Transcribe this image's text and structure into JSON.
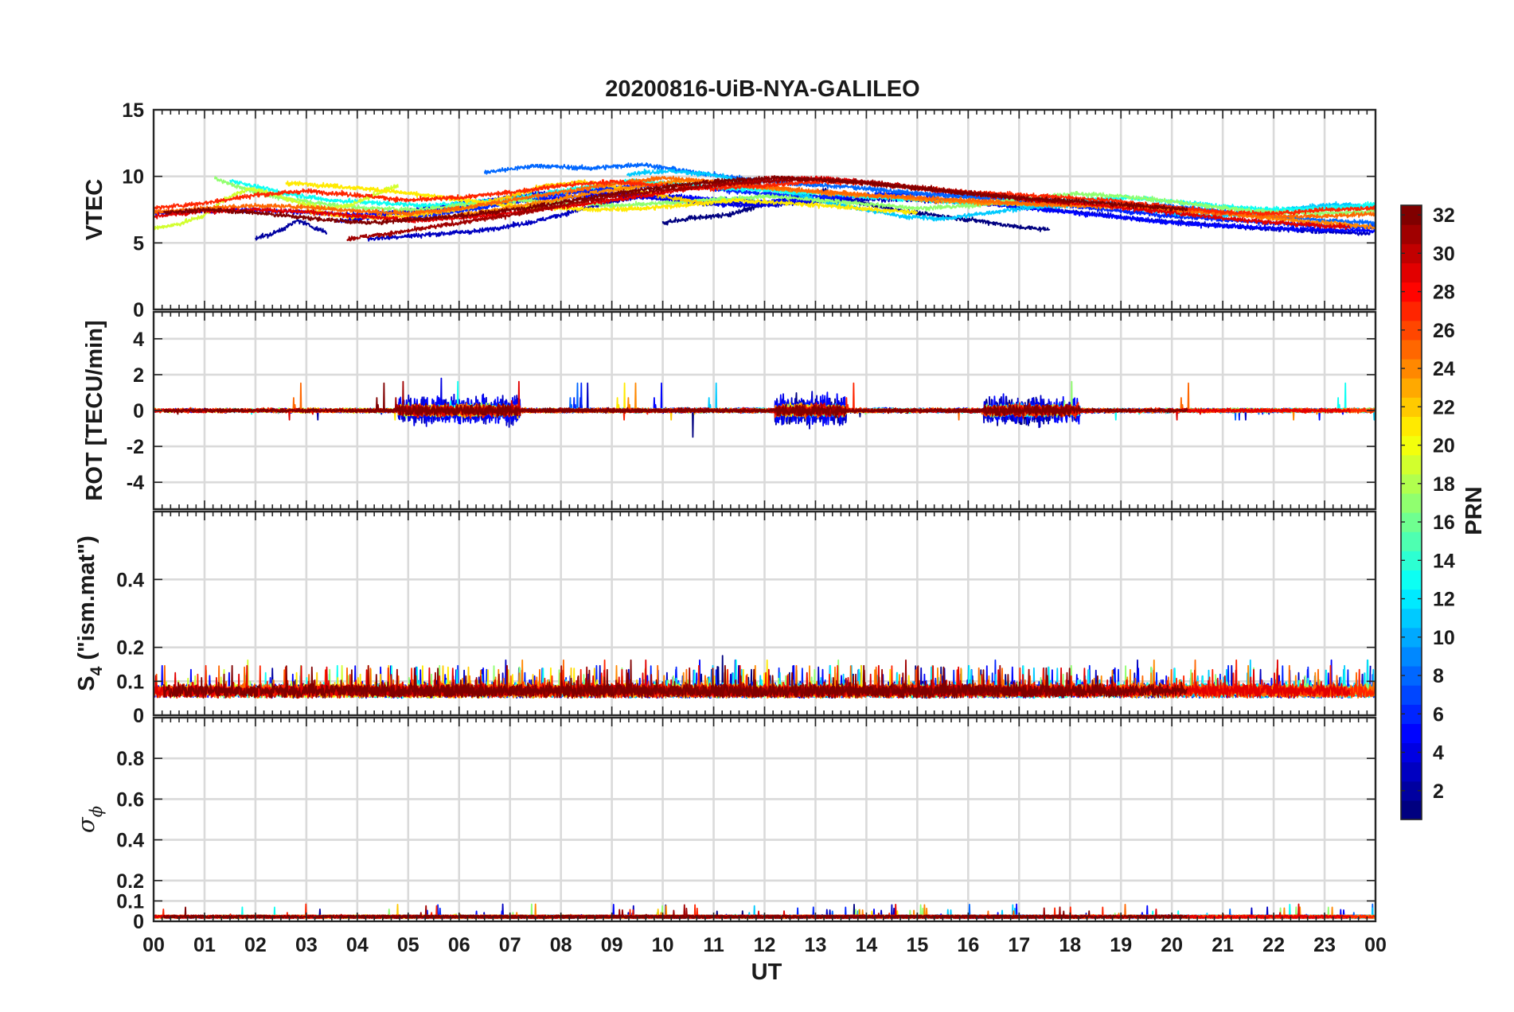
{
  "chart_data": {
    "type": "line",
    "title": "20200816-UiB-NYA-GALILEO",
    "xlabel": "UT",
    "xlim": [
      0,
      24
    ],
    "x_tick_labels": [
      "00",
      "01",
      "02",
      "03",
      "04",
      "05",
      "06",
      "07",
      "08",
      "09",
      "10",
      "11",
      "12",
      "13",
      "14",
      "15",
      "16",
      "17",
      "18",
      "19",
      "20",
      "21",
      "22",
      "23",
      "00"
    ],
    "panels": [
      {
        "ylabel": "VTEC",
        "ylim": [
          0,
          15
        ],
        "yticks": [
          0,
          5,
          10,
          15
        ],
        "ytick_labels": [
          "0",
          "5",
          "10",
          "15"
        ]
      },
      {
        "ylabel": "ROT [TECU/min]",
        "ylim": [
          -5.5,
          5.5
        ],
        "yticks": [
          -4,
          -2,
          0,
          2,
          4
        ],
        "ytick_labels": [
          "-4",
          "-2",
          "0",
          "2",
          "4"
        ]
      },
      {
        "ylabel": "S",
        "ylabel_sub": "4",
        "ylabel_suffix": " (\"ism.mat\")",
        "ylim": [
          0,
          0.6
        ],
        "yticks": [
          0,
          0.1,
          0.2,
          0.4
        ],
        "ytick_labels": [
          "0",
          "0.1",
          "0.2",
          "0.4"
        ]
      },
      {
        "ylabel": "σ",
        "ylabel_sub": "ϕ",
        "ylim": [
          0,
          1
        ],
        "yticks": [
          0,
          0.1,
          0.2,
          0.4,
          0.6,
          0.8
        ],
        "ytick_labels": [
          "0",
          "0.1",
          "0.2",
          "0.4",
          "0.6",
          "0.8"
        ]
      }
    ],
    "colorbar": {
      "label": "PRN",
      "range": [
        1,
        32
      ],
      "ticks": [
        2,
        4,
        6,
        8,
        10,
        12,
        14,
        16,
        18,
        20,
        22,
        24,
        26,
        28,
        30,
        32
      ],
      "colormap": "jet"
    },
    "grid": true,
    "series": [
      {
        "prn": 1,
        "start": 10.0,
        "end": 17.6,
        "vtec": [
          6.5,
          6.9,
          7.1,
          7.8,
          8.4,
          8.9,
          8.1,
          7.6,
          7.2,
          6.9,
          6.6,
          6.2,
          6.0
        ]
      },
      {
        "prn": 2,
        "start": 2.0,
        "end": 3.4,
        "vtec": [
          5.4,
          5.6,
          6.1,
          6.7,
          6.2,
          5.8
        ]
      },
      {
        "prn": 3,
        "start": 4.2,
        "end": 23.9,
        "vtec": [
          5.3,
          5.6,
          5.9,
          6.6,
          7.7,
          8.6,
          8.3,
          7.8,
          8.1,
          8.3,
          8.2,
          8.0,
          7.6,
          7.2,
          6.7,
          6.4,
          6.1,
          5.9,
          5.7
        ]
      },
      {
        "prn": 4,
        "start": 3.6,
        "end": 13.1,
        "vtec": [
          6.6,
          7.0,
          7.5,
          7.9,
          8.3,
          8.7,
          8.9,
          8.6,
          8.3,
          8.0,
          7.8,
          8.0,
          8.1
        ]
      },
      {
        "prn": 5,
        "start": 0.0,
        "end": 24.0,
        "vtec": [
          7.2,
          7.4,
          7.5,
          7.3,
          7.1,
          7.4,
          7.7,
          8.1,
          8.4,
          8.7,
          8.5,
          8.3,
          8.1,
          8.3,
          8.5,
          8.4,
          8.1,
          7.7,
          7.3,
          6.9,
          6.5,
          6.3,
          6.1,
          6.0,
          5.9
        ]
      },
      {
        "prn": 6,
        "start": 5.0,
        "end": 24.0,
        "vtec": [
          6.9,
          7.4,
          8.1,
          8.8,
          9.2,
          9.4,
          8.9,
          8.6,
          8.5,
          8.7,
          8.6,
          8.3,
          7.9,
          7.5,
          7.1,
          6.8,
          6.5,
          6.3,
          6.2
        ]
      },
      {
        "prn": 8,
        "start": 6.5,
        "end": 24.0,
        "vtec": [
          10.3,
          10.8,
          10.6,
          10.9,
          10.3,
          9.8,
          9.4,
          9.2,
          8.8,
          8.5,
          8.3,
          8.2,
          8.0,
          7.8,
          7.4,
          7.0,
          6.7,
          6.5
        ]
      },
      {
        "prn": 11,
        "start": 9.3,
        "end": 24.0,
        "vtec": [
          10.2,
          10.4,
          10.2,
          9.6,
          8.9,
          8.1,
          7.5,
          7.0,
          6.8,
          7.2,
          7.6,
          7.8,
          8.0,
          7.6,
          7.2,
          7.0,
          7.3,
          7.6,
          7.9,
          7.7
        ]
      },
      {
        "prn": 13,
        "start": 1.5,
        "end": 24.0,
        "vtec": [
          9.7,
          8.8,
          8.2,
          8.0,
          7.8,
          8.1,
          8.5,
          9.1,
          9.7,
          9.4,
          9.1,
          8.9,
          8.7,
          8.4,
          8.2,
          8.0,
          7.9,
          8.2,
          8.4,
          8.1,
          7.7,
          7.5,
          7.6,
          7.9
        ]
      },
      {
        "prn": 17,
        "start": 1.2,
        "end": 24.0,
        "vtec": [
          9.8,
          8.6,
          8.0,
          7.6,
          7.5,
          7.9,
          8.2,
          8.0,
          7.8,
          8.0,
          8.3,
          8.5,
          8.2,
          7.9,
          7.6,
          7.8,
          8.3,
          8.7,
          8.5,
          8.1,
          7.6,
          7.3,
          7.2,
          7.4
        ]
      },
      {
        "prn": 19,
        "start": 0.0,
        "end": 4.8,
        "vtec": [
          6.1,
          6.4,
          7.0,
          8.4,
          9.1,
          8.6,
          8.0,
          7.6,
          7.8,
          8.6,
          9.3
        ]
      },
      {
        "prn": 21,
        "start": 2.6,
        "end": 15.0,
        "vtec": [
          9.5,
          9.3,
          9.0,
          8.6,
          8.2,
          7.8,
          7.6,
          7.5,
          7.6,
          7.9,
          8.2,
          8.0,
          7.8,
          7.5,
          7.3
        ]
      },
      {
        "prn": 22,
        "start": 3.0,
        "end": 10.8,
        "vtec": [
          7.4,
          7.0,
          6.9,
          7.2,
          7.6,
          8.4,
          9.3,
          9.6,
          9.1,
          8.5,
          8.0
        ]
      },
      {
        "prn": 24,
        "start": 5.6,
        "end": 24.0,
        "vtec": [
          6.9,
          7.4,
          8.0,
          8.7,
          9.2,
          9.7,
          9.4,
          9.0,
          8.7,
          8.5,
          8.2,
          8.0,
          7.9,
          7.8,
          7.7,
          7.4,
          7.2,
          6.8,
          6.5,
          6.2
        ]
      },
      {
        "prn": 25,
        "start": 0.0,
        "end": 24.0,
        "vtec": [
          7.3,
          7.6,
          7.8,
          7.7,
          7.4,
          7.2,
          7.6,
          8.2,
          8.8,
          9.4,
          9.9,
          9.6,
          9.2,
          8.9,
          8.6,
          8.4,
          8.2,
          8.0,
          7.9,
          7.8,
          7.5,
          7.2,
          7.0,
          7.0,
          7.2
        ]
      },
      {
        "prn": 27,
        "start": 0.0,
        "end": 24.0,
        "vtec": [
          7.6,
          8.0,
          8.6,
          8.9,
          8.6,
          8.2,
          8.4,
          8.8,
          9.3,
          9.6,
          9.3,
          9.1,
          9.3,
          9.6,
          9.5,
          9.1,
          8.8,
          8.6,
          8.4,
          8.1,
          7.7,
          7.3,
          7.2,
          7.5,
          7.6
        ]
      },
      {
        "prn": 29,
        "start": 0.0,
        "end": 23.5,
        "vtec": [
          7.0,
          7.4,
          7.5,
          7.3,
          7.0,
          6.7,
          6.9,
          7.3,
          7.8,
          8.3,
          8.9,
          9.4,
          9.9,
          9.8,
          9.4,
          9.0,
          8.6,
          8.2,
          7.9,
          7.5,
          7.1,
          6.7,
          6.4,
          6.2
        ]
      },
      {
        "prn": 31,
        "start": 3.8,
        "end": 18.0,
        "vtec": [
          5.3,
          5.8,
          6.4,
          7.0,
          7.7,
          8.4,
          8.9,
          9.3,
          9.6,
          9.8,
          9.6,
          9.2,
          8.8,
          8.4,
          8.0
        ]
      },
      {
        "prn": 32,
        "start": 0.2,
        "end": 20.3,
        "vtec": [
          7.3,
          7.5,
          7.2,
          6.8,
          6.5,
          6.8,
          7.1,
          7.6,
          8.2,
          8.8,
          9.3,
          9.7,
          9.9,
          9.7,
          9.4,
          9.0,
          8.6,
          8.3,
          8.1,
          7.8,
          7.5
        ]
      }
    ]
  }
}
